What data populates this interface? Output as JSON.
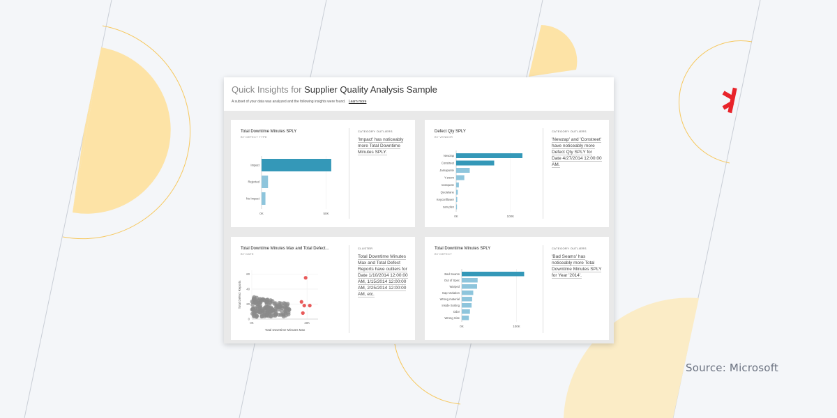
{
  "source": "Source: Microsoft",
  "header": {
    "title_prefix": "Quick Insights for",
    "title_name": "Supplier Quality Analysis Sample",
    "subtitle": "A subset of your data was analyzed and the following insights were found.",
    "learn_more": "Learn more"
  },
  "cards": [
    {
      "title": "Total Downtime Minutes SPLY",
      "subtitle": "BY DEFECT TYPE",
      "insight_label": "CATEGORY OUTLIERS",
      "insight": "'Impact' has noticeably more Total Downtime Minutes SPLY."
    },
    {
      "title": "Defect Qty SPLY",
      "subtitle": "BY VENDOR",
      "insight_label": "CATEGORY OUTLIERS",
      "insight": "'Newzap' and 'Constreet' have noticeably more Defect Qty SPLY for Date 4/27/2014 12:00:00 AM."
    },
    {
      "title": "Total Downtime Minutes Max and Total Defect...",
      "subtitle": "BY DATE",
      "insight_label": "CLUSTER",
      "insight": "Total Downtime Minutes Max and Total Defect Reports have outliers for Date 1/10/2014 12:00:00 AM, 1/15/2014 12:00:00 AM, 2/25/2014 12:00:00 AM, etc."
    },
    {
      "title": "Total Downtime Minutes SPLY",
      "subtitle": "BY DEFECT",
      "insight_label": "CATEGORY OUTLIERS",
      "insight": "'Bad Seams' has noticeably more Total Downtime Minutes SPLY for Year '2014'."
    }
  ],
  "chart_data": [
    {
      "type": "bar",
      "orientation": "horizontal",
      "categories": [
        "Impact",
        "Rejected",
        "No Impact"
      ],
      "values": [
        54000,
        5000,
        3000
      ],
      "highlight": [
        0
      ],
      "xlim": [
        0,
        60000
      ],
      "ticks": [
        0,
        50000
      ],
      "tick_labels": [
        "0K",
        "50K"
      ]
    },
    {
      "type": "bar",
      "orientation": "horizontal",
      "categories": [
        "Newzap",
        "Constreet",
        "Jamapunte",
        "Y-zoom",
        "scotquote",
        "Quotelane",
        "Keyconflower",
        "san-plex"
      ],
      "values": [
        122000,
        70000,
        25000,
        15000,
        5000,
        3000,
        2000,
        1500
      ],
      "highlight": [
        0,
        1
      ],
      "xlim": [
        0,
        140000
      ],
      "ticks": [
        0,
        100000
      ],
      "tick_labels": [
        "0K",
        "100K"
      ]
    },
    {
      "type": "scatter",
      "xlabel": "Total Downtime Minutes Max",
      "ylabel": "Total Defect Reports",
      "xlim": [
        0,
        24000
      ],
      "ylim": [
        0,
        65
      ],
      "xticks": [
        0,
        20000
      ],
      "xtick_labels": [
        "0K",
        "20K"
      ],
      "yticks": [
        0,
        20,
        40,
        60
      ],
      "ytick_labels": [
        "0",
        "20",
        "40",
        "60"
      ],
      "cluster": {
        "x_range": [
          100,
          14000
        ],
        "y_range": [
          3,
          30
        ],
        "count": 160
      },
      "outliers": [
        [
          19500,
          55
        ],
        [
          18000,
          23
        ],
        [
          19000,
          18
        ],
        [
          21000,
          18
        ],
        [
          18500,
          8
        ]
      ]
    },
    {
      "type": "bar",
      "orientation": "horizontal",
      "categories": [
        "Bad Seams",
        "Out of Spec",
        "Warped",
        "Gap Variation",
        "Wrong material",
        "Inside Sorting",
        "Odor",
        "Wrong Size"
      ],
      "values": [
        114000,
        29000,
        28000,
        21000,
        19000,
        18000,
        15000,
        13000
      ],
      "highlight": [
        0
      ],
      "xlim": [
        0,
        130000
      ],
      "ticks": [
        0,
        100000
      ],
      "tick_labels": [
        "0K",
        "100K"
      ]
    }
  ],
  "colors": {
    "highlight_bar": "#3498b8",
    "normal_bar": "#8ec5dc",
    "cluster_point": "#8a8a8a",
    "outlier_point": "#e85a5a",
    "logo": "#e8232a",
    "accent_circle": "#fde3a6",
    "accent_line": "#f7c74e"
  }
}
